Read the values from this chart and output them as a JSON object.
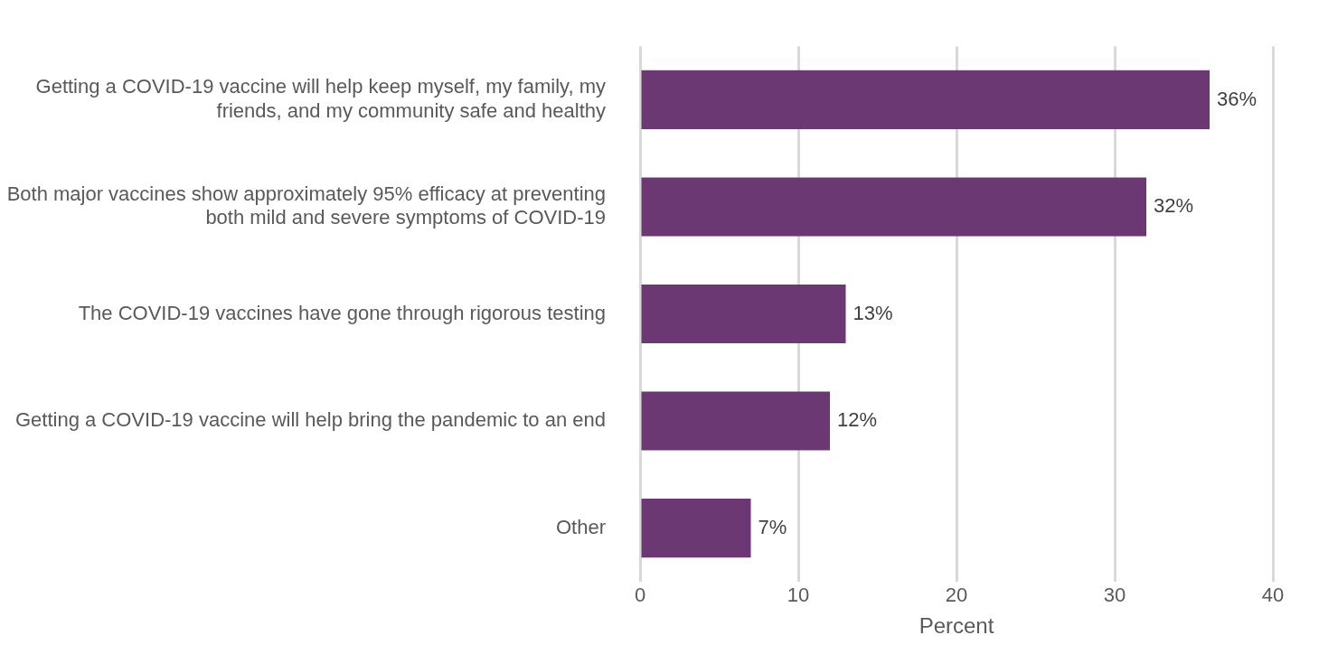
{
  "chart_data": {
    "type": "bar",
    "orientation": "horizontal",
    "categories": [
      "Getting a COVID-19 vaccine will help keep myself, my family, my friends, and my community safe and healthy",
      "Both major vaccines show approximately 95% efficacy at preventing both mild and severe symptoms of COVID-19",
      "The COVID-19 vaccines have gone through rigorous testing",
      "Getting a COVID-19 vaccine will help bring the pandemic to an end",
      "Other"
    ],
    "values": [
      36,
      32,
      13,
      12,
      7
    ],
    "value_labels": [
      "36%",
      "32%",
      "13%",
      "12%",
      "7%"
    ],
    "color": "#6b3874",
    "xlim": [
      0,
      40
    ],
    "xticks": [
      0,
      10,
      20,
      30,
      40
    ],
    "xlabel": "Percent",
    "grid": "x",
    "legend": false
  }
}
